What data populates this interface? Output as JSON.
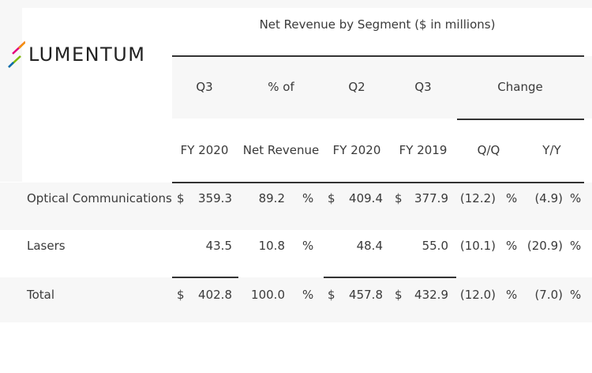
{
  "logo": {
    "text": "LUMENTUM",
    "colors": [
      "#e4007c",
      "#f39200",
      "#7ab800",
      "#0069b4"
    ]
  },
  "table": {
    "title": "Net Revenue by Segment ($ in millions)",
    "headers_top": [
      "Q3",
      "% of",
      "Q2",
      "Q3",
      "Change"
    ],
    "headers_bottom": [
      "FY 2020",
      "Net Revenue",
      "FY 2020",
      "FY 2019",
      "Q/Q",
      "Y/Y"
    ],
    "rows": [
      {
        "label": "Optical Communications",
        "d1": "$",
        "q3_2020": "359.3",
        "pct": "89.2",
        "p1": "%",
        "d2": "$",
        "q2_2020": "409.4",
        "d3": "$",
        "q3_2019": "377.9",
        "qq": "(12.2)",
        "p2": "%",
        "yy": "(4.9)",
        "p3": "%"
      },
      {
        "label": "Lasers",
        "d1": "",
        "q3_2020": "43.5",
        "pct": "10.8",
        "p1": "%",
        "d2": "",
        "q2_2020": "48.4",
        "d3": "",
        "q3_2019": "55.0",
        "qq": "(10.1)",
        "p2": "%",
        "yy": "(20.9)",
        "p3": "%"
      },
      {
        "label": "Total",
        "d1": "$",
        "q3_2020": "402.8",
        "pct": "100.0",
        "p1": "%",
        "d2": "$",
        "q2_2020": "457.8",
        "d3": "$",
        "q3_2019": "432.9",
        "qq": "(12.0)",
        "p2": "%",
        "yy": "(7.0)",
        "p3": "%"
      }
    ]
  }
}
